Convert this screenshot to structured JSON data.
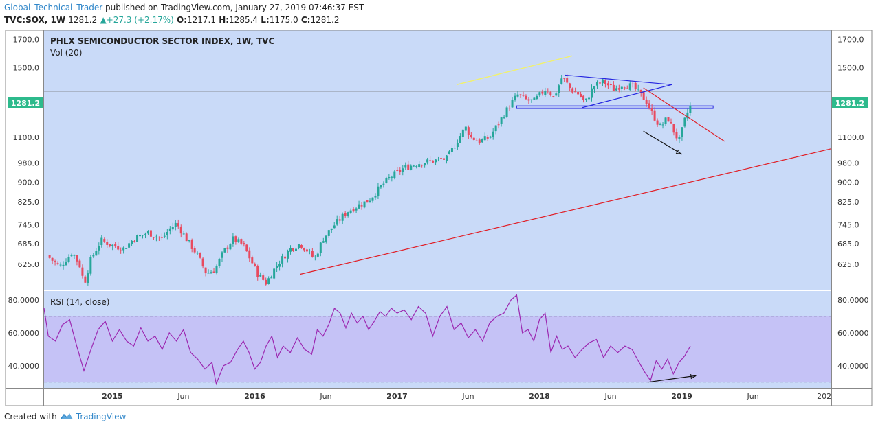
{
  "header": {
    "author": "Global_Technical_Trader",
    "published": "published on TradingView.com, January 27, 2019 07:46:37 EST",
    "symbol": "TVC:SOX, 1W",
    "last": "1281.2",
    "change": "+27.3 (+2.17%)",
    "open_label": "O:",
    "open": "1217.1",
    "high_label": "H:",
    "high": "1285.4",
    "low_label": "L:",
    "low": "1175.0",
    "close_label": "C:",
    "close": "1281.2"
  },
  "footer": {
    "created": "Created with",
    "brand": "TradingView"
  },
  "colors": {
    "main_bg": "#c9daf8",
    "rsi_band": "#c5c2f6",
    "up": "#26a69a",
    "down": "#e84a5f",
    "rsi_line": "#9c27b0",
    "trend_red": "#e11d25",
    "trend_blue": "#2626e0",
    "trend_yellow": "#f0f070"
  },
  "chart_data": {
    "type": "candlestick",
    "title": "PHLX SEMICONDUCTOR SECTOR INDEX, 1W, TVC",
    "volume_label": "Vol (20)",
    "last_price_label": "1281.2",
    "last_price": 1281.2,
    "price_scale": "log",
    "ylim": [
      560,
      1760
    ],
    "y_ticks": [
      1700,
      1500,
      1100,
      980,
      900,
      825,
      745,
      685,
      625
    ],
    "y_tick_labels": [
      "1700.0",
      "1500.0",
      "1100.0",
      "980.0",
      "900.0",
      "825.0",
      "745.0",
      "685.0",
      "625.0"
    ],
    "x_ticks": [
      {
        "t": 2015.0,
        "label": "2015"
      },
      {
        "t": 2015.5,
        "label": "Jun"
      },
      {
        "t": 2016.0,
        "label": "2016"
      },
      {
        "t": 2016.5,
        "label": "Jun"
      },
      {
        "t": 2017.0,
        "label": "2017"
      },
      {
        "t": 2017.5,
        "label": "Jun"
      },
      {
        "t": 2018.0,
        "label": "2018"
      },
      {
        "t": 2018.5,
        "label": "Jun"
      },
      {
        "t": 2019.0,
        "label": "2019"
      },
      {
        "t": 2019.5,
        "label": "Jun"
      },
      {
        "t": 2020.0,
        "label": "202"
      }
    ],
    "x_range": [
      2014.52,
      2020.05
    ],
    "weekly_closes": [
      {
        "t": 2014.54,
        "v": 650
      },
      {
        "t": 2014.63,
        "v": 618
      },
      {
        "t": 2014.72,
        "v": 660
      },
      {
        "t": 2014.78,
        "v": 615
      },
      {
        "t": 2014.8,
        "v": 570
      },
      {
        "t": 2014.85,
        "v": 640
      },
      {
        "t": 2014.92,
        "v": 695
      },
      {
        "t": 2015.0,
        "v": 680
      },
      {
        "t": 2015.08,
        "v": 670
      },
      {
        "t": 2015.15,
        "v": 700
      },
      {
        "t": 2015.25,
        "v": 720
      },
      {
        "t": 2015.35,
        "v": 700
      },
      {
        "t": 2015.4,
        "v": 730
      },
      {
        "t": 2015.45,
        "v": 750
      },
      {
        "t": 2015.52,
        "v": 700
      },
      {
        "t": 2015.6,
        "v": 650
      },
      {
        "t": 2015.66,
        "v": 600
      },
      {
        "t": 2015.72,
        "v": 610
      },
      {
        "t": 2015.78,
        "v": 660
      },
      {
        "t": 2015.85,
        "v": 700
      },
      {
        "t": 2015.92,
        "v": 680
      },
      {
        "t": 2016.02,
        "v": 600
      },
      {
        "t": 2016.08,
        "v": 575
      },
      {
        "t": 2016.15,
        "v": 620
      },
      {
        "t": 2016.25,
        "v": 670
      },
      {
        "t": 2016.32,
        "v": 685
      },
      {
        "t": 2016.38,
        "v": 660
      },
      {
        "t": 2016.42,
        "v": 640
      },
      {
        "t": 2016.48,
        "v": 700
      },
      {
        "t": 2016.55,
        "v": 740
      },
      {
        "t": 2016.65,
        "v": 790
      },
      {
        "t": 2016.72,
        "v": 810
      },
      {
        "t": 2016.8,
        "v": 830
      },
      {
        "t": 2016.88,
        "v": 880
      },
      {
        "t": 2016.95,
        "v": 920
      },
      {
        "t": 2017.05,
        "v": 960
      },
      {
        "t": 2017.15,
        "v": 980
      },
      {
        "t": 2017.25,
        "v": 990
      },
      {
        "t": 2017.35,
        "v": 1000
      },
      {
        "t": 2017.42,
        "v": 1080
      },
      {
        "t": 2017.48,
        "v": 1150
      },
      {
        "t": 2017.52,
        "v": 1100
      },
      {
        "t": 2017.58,
        "v": 1080
      },
      {
        "t": 2017.65,
        "v": 1100
      },
      {
        "t": 2017.72,
        "v": 1180
      },
      {
        "t": 2017.8,
        "v": 1280
      },
      {
        "t": 2017.85,
        "v": 1330
      },
      {
        "t": 2017.9,
        "v": 1300
      },
      {
        "t": 2017.96,
        "v": 1290
      },
      {
        "t": 2018.05,
        "v": 1370
      },
      {
        "t": 2018.1,
        "v": 1310
      },
      {
        "t": 2018.16,
        "v": 1440
      },
      {
        "t": 2018.22,
        "v": 1360
      },
      {
        "t": 2018.28,
        "v": 1330
      },
      {
        "t": 2018.32,
        "v": 1280
      },
      {
        "t": 2018.38,
        "v": 1380
      },
      {
        "t": 2018.45,
        "v": 1410
      },
      {
        "t": 2018.52,
        "v": 1360
      },
      {
        "t": 2018.58,
        "v": 1390
      },
      {
        "t": 2018.65,
        "v": 1380
      },
      {
        "t": 2018.7,
        "v": 1340
      },
      {
        "t": 2018.75,
        "v": 1290
      },
      {
        "t": 2018.8,
        "v": 1210
      },
      {
        "t": 2018.85,
        "v": 1150
      },
      {
        "t": 2018.9,
        "v": 1200
      },
      {
        "t": 2018.95,
        "v": 1120
      },
      {
        "t": 2018.98,
        "v": 1080
      },
      {
        "t": 2019.03,
        "v": 1210
      },
      {
        "t": 2019.07,
        "v": 1281.2
      }
    ],
    "rsi": {
      "label": "RSI (14, close)",
      "ylim": [
        27,
        85
      ],
      "y_ticks": [
        80,
        60,
        40
      ],
      "y_tick_labels": [
        "80.0000",
        "60.0000",
        "40.0000"
      ],
      "bands": [
        70,
        30
      ],
      "series": [
        {
          "t": 2014.52,
          "v": 75
        },
        {
          "t": 2014.55,
          "v": 58
        },
        {
          "t": 2014.6,
          "v": 55
        },
        {
          "t": 2014.65,
          "v": 65
        },
        {
          "t": 2014.7,
          "v": 68
        },
        {
          "t": 2014.75,
          "v": 52
        },
        {
          "t": 2014.8,
          "v": 37
        },
        {
          "t": 2014.85,
          "v": 50
        },
        {
          "t": 2014.9,
          "v": 62
        },
        {
          "t": 2014.95,
          "v": 67
        },
        {
          "t": 2015.0,
          "v": 55
        },
        {
          "t": 2015.05,
          "v": 62
        },
        {
          "t": 2015.1,
          "v": 55
        },
        {
          "t": 2015.15,
          "v": 52
        },
        {
          "t": 2015.2,
          "v": 63
        },
        {
          "t": 2015.25,
          "v": 55
        },
        {
          "t": 2015.3,
          "v": 58
        },
        {
          "t": 2015.35,
          "v": 50
        },
        {
          "t": 2015.4,
          "v": 60
        },
        {
          "t": 2015.45,
          "v": 55
        },
        {
          "t": 2015.5,
          "v": 62
        },
        {
          "t": 2015.55,
          "v": 48
        },
        {
          "t": 2015.6,
          "v": 44
        },
        {
          "t": 2015.65,
          "v": 38
        },
        {
          "t": 2015.7,
          "v": 42
        },
        {
          "t": 2015.73,
          "v": 29
        },
        {
          "t": 2015.78,
          "v": 40
        },
        {
          "t": 2015.83,
          "v": 42
        },
        {
          "t": 2015.88,
          "v": 50
        },
        {
          "t": 2015.92,
          "v": 55
        },
        {
          "t": 2015.96,
          "v": 48
        },
        {
          "t": 2016.0,
          "v": 38
        },
        {
          "t": 2016.04,
          "v": 42
        },
        {
          "t": 2016.08,
          "v": 52
        },
        {
          "t": 2016.12,
          "v": 58
        },
        {
          "t": 2016.16,
          "v": 45
        },
        {
          "t": 2016.2,
          "v": 52
        },
        {
          "t": 2016.25,
          "v": 48
        },
        {
          "t": 2016.3,
          "v": 57
        },
        {
          "t": 2016.35,
          "v": 50
        },
        {
          "t": 2016.4,
          "v": 47
        },
        {
          "t": 2016.44,
          "v": 62
        },
        {
          "t": 2016.48,
          "v": 58
        },
        {
          "t": 2016.52,
          "v": 65
        },
        {
          "t": 2016.56,
          "v": 75
        },
        {
          "t": 2016.6,
          "v": 72
        },
        {
          "t": 2016.64,
          "v": 63
        },
        {
          "t": 2016.68,
          "v": 72
        },
        {
          "t": 2016.72,
          "v": 66
        },
        {
          "t": 2016.76,
          "v": 70
        },
        {
          "t": 2016.8,
          "v": 62
        },
        {
          "t": 2016.84,
          "v": 67
        },
        {
          "t": 2016.88,
          "v": 73
        },
        {
          "t": 2016.92,
          "v": 70
        },
        {
          "t": 2016.96,
          "v": 75
        },
        {
          "t": 2017.0,
          "v": 72
        },
        {
          "t": 2017.05,
          "v": 74
        },
        {
          "t": 2017.1,
          "v": 68
        },
        {
          "t": 2017.15,
          "v": 76
        },
        {
          "t": 2017.2,
          "v": 72
        },
        {
          "t": 2017.25,
          "v": 58
        },
        {
          "t": 2017.3,
          "v": 70
        },
        {
          "t": 2017.35,
          "v": 76
        },
        {
          "t": 2017.4,
          "v": 62
        },
        {
          "t": 2017.45,
          "v": 66
        },
        {
          "t": 2017.5,
          "v": 57
        },
        {
          "t": 2017.55,
          "v": 62
        },
        {
          "t": 2017.6,
          "v": 55
        },
        {
          "t": 2017.65,
          "v": 66
        },
        {
          "t": 2017.7,
          "v": 70
        },
        {
          "t": 2017.75,
          "v": 72
        },
        {
          "t": 2017.8,
          "v": 80
        },
        {
          "t": 2017.84,
          "v": 83
        },
        {
          "t": 2017.88,
          "v": 60
        },
        {
          "t": 2017.92,
          "v": 62
        },
        {
          "t": 2017.96,
          "v": 55
        },
        {
          "t": 2018.0,
          "v": 68
        },
        {
          "t": 2018.04,
          "v": 72
        },
        {
          "t": 2018.08,
          "v": 48
        },
        {
          "t": 2018.12,
          "v": 58
        },
        {
          "t": 2018.16,
          "v": 50
        },
        {
          "t": 2018.2,
          "v": 52
        },
        {
          "t": 2018.25,
          "v": 45
        },
        {
          "t": 2018.3,
          "v": 50
        },
        {
          "t": 2018.35,
          "v": 54
        },
        {
          "t": 2018.4,
          "v": 56
        },
        {
          "t": 2018.45,
          "v": 45
        },
        {
          "t": 2018.5,
          "v": 52
        },
        {
          "t": 2018.55,
          "v": 48
        },
        {
          "t": 2018.6,
          "v": 52
        },
        {
          "t": 2018.65,
          "v": 50
        },
        {
          "t": 2018.7,
          "v": 42
        },
        {
          "t": 2018.74,
          "v": 36
        },
        {
          "t": 2018.78,
          "v": 31
        },
        {
          "t": 2018.82,
          "v": 43
        },
        {
          "t": 2018.86,
          "v": 38
        },
        {
          "t": 2018.9,
          "v": 44
        },
        {
          "t": 2018.94,
          "v": 35
        },
        {
          "t": 2018.98,
          "v": 42
        },
        {
          "t": 2019.02,
          "v": 46
        },
        {
          "t": 2019.06,
          "v": 52
        }
      ]
    },
    "trendlines": [
      {
        "name": "long-term-support",
        "color": "red",
        "from": {
          "t": 2016.32,
          "v": 598
        },
        "to": {
          "t": 2020.05,
          "v": 1045
        }
      },
      {
        "name": "falling-resistance",
        "color": "red",
        "from": {
          "t": 2018.73,
          "v": 1370
        },
        "to": {
          "t": 2019.3,
          "v": 1080
        }
      },
      {
        "name": "triangle-top",
        "color": "blue",
        "from": {
          "t": 2018.18,
          "v": 1450
        },
        "to": {
          "t": 2018.93,
          "v": 1390
        }
      },
      {
        "name": "triangle-bottom",
        "color": "blue",
        "from": {
          "t": 2018.3,
          "v": 1255
        },
        "to": {
          "t": 2018.93,
          "v": 1390
        }
      },
      {
        "name": "prior-trend",
        "color": "yellow",
        "from": {
          "t": 2017.42,
          "v": 1390
        },
        "to": {
          "t": 2018.23,
          "v": 1580
        }
      },
      {
        "name": "price-arrow",
        "color": "black",
        "from": {
          "t": 2018.73,
          "v": 1130
        },
        "to": {
          "t": 2019.0,
          "v": 1020
        },
        "arrow": true
      },
      {
        "name": "rsi-arrow",
        "color": "black",
        "pane": "rsi",
        "from": {
          "t": 2018.76,
          "v": 30
        },
        "to": {
          "t": 2019.1,
          "v": 34
        },
        "arrow": true
      }
    ],
    "horizontal_levels": [
      {
        "name": "resistance-level",
        "v": 1350
      },
      {
        "name": "support-box",
        "v_from": 1250,
        "v_to": 1265,
        "t_from": 2017.84,
        "t_to": 2019.22
      }
    ]
  }
}
